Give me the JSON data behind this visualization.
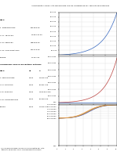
{
  "title": "Amortización y Deducción Del Reajuste Que No Corresponde Por Adelanto de Materiales",
  "subtitle": "(*) La curva de avance real no se encuentra por Hito\nTambién se puede incluir opcionalmente a diario",
  "pdf_watermark": "PDF",
  "table1_section_label": "HITO",
  "table1_col2": "",
  "table1_col3": "",
  "table1_rows": [
    [
      "1. PRELIMINARES",
      "431,969.00",
      ""
    ],
    [
      "1.01. TRAZADO",
      "1,515,031.00",
      ""
    ],
    [
      "1.02. PERFILES",
      "945,843.00",
      ""
    ],
    [
      "1.03. CONFORMADOS",
      "917,473.00",
      ""
    ],
    [
      "CIERRE",
      "11,377.00",
      ""
    ]
  ],
  "table2_title": "Acumulado avance del gráfico anterior",
  "table2_cols": [
    "HITO",
    "C1",
    "S"
  ],
  "table2_rows": [
    [
      "1. PRELIMINARES",
      "0.000",
      "14,375.000"
    ],
    [
      "1.01. TRAZADO",
      "0.000",
      "86,301.000"
    ],
    [
      "1.02. PERFILES",
      "0.000",
      "1,000,000.000"
    ],
    [
      "1.03. CONFORMADOS",
      "0.000",
      "15,050.000"
    ],
    [
      "CIERRE",
      "0.000",
      "11,375.00"
    ]
  ],
  "chart1_color": "#4472c4",
  "chart2_color": "#c0504d",
  "chart3_colors": [
    "#4472c4",
    "#c0504d",
    "#9bbb59",
    "#f79646"
  ],
  "chart2_hline_color": "#4472c4",
  "background_color": "#ffffff",
  "text_color": "#000000",
  "grid_color": "#d0d0d0",
  "chart1_ylim": [
    0,
    900000
  ],
  "chart2_ylim": [
    -2000000,
    70000000
  ],
  "chart3_ylim": [
    0,
    180000000
  ]
}
